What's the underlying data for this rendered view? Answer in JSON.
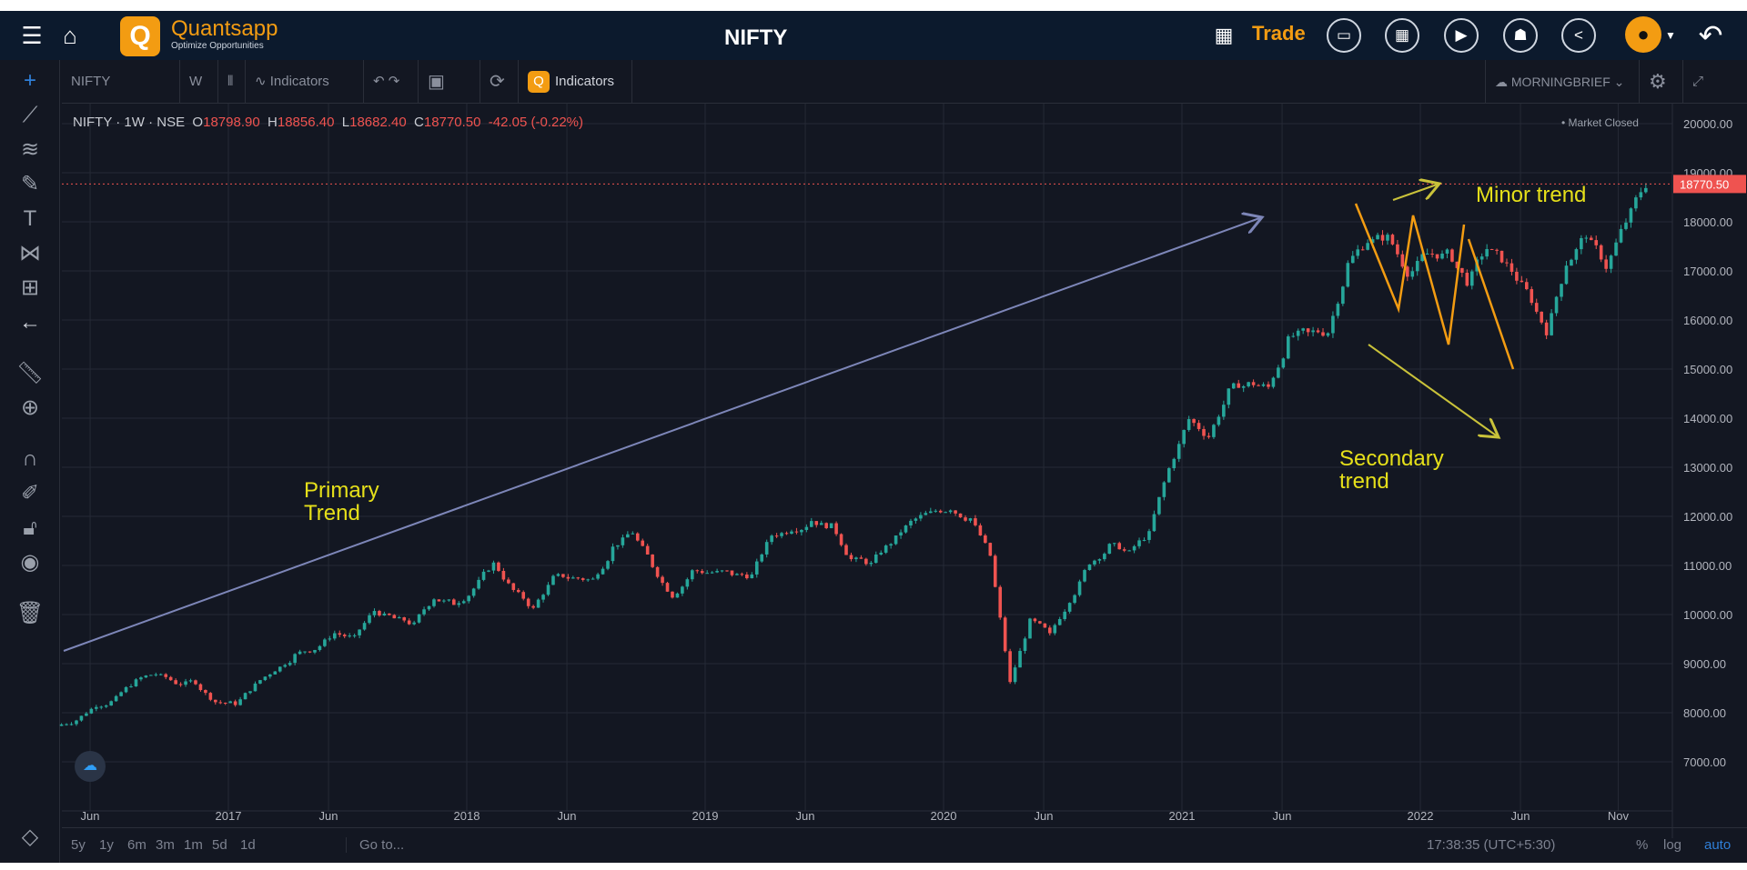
{
  "header": {
    "title": "NIFTY",
    "brand": "Quantsapp",
    "tagline": "Optimize Opportunities",
    "trade_label": "Trade"
  },
  "toolbar": {
    "symbol": "NIFTY",
    "interval": "W",
    "indicators_label": "Indicators",
    "q_indicators_label": "Indicators",
    "layout_name": "MORNINGBRIEF"
  },
  "legend": {
    "symbol": "NIFTY",
    "interval": "1W",
    "exchange": "NSE",
    "open": "18798.90",
    "high": "18856.40",
    "low": "18682.40",
    "close": "18770.50",
    "change": "-42.05 (-0.22%)",
    "status": "Market Closed"
  },
  "bottom": {
    "ranges": [
      "5y",
      "1y",
      "6m",
      "3m",
      "1m",
      "5d",
      "1d"
    ],
    "goto": "Go to...",
    "time": "17:38:35 (UTC+5:30)",
    "pct": "%",
    "log": "log",
    "auto": "auto"
  },
  "chart_data": {
    "type": "candlestick",
    "title": "NIFTY · 1W · NSE",
    "ylim": [
      6500,
      20500
    ],
    "y_ticks": [
      "20000.00",
      "19000.00",
      "18000.00",
      "17000.00",
      "16000.00",
      "15000.00",
      "14000.00",
      "13000.00",
      "12000.00",
      "11000.00",
      "10000.00",
      "9000.00",
      "8000.00",
      "7000.00"
    ],
    "x_ticks": [
      {
        "label": "Jun",
        "t": 2016.42
      },
      {
        "label": "2017",
        "t": 2017.0
      },
      {
        "label": "Jun",
        "t": 2017.42
      },
      {
        "label": "2018",
        "t": 2018.0
      },
      {
        "label": "Jun",
        "t": 2018.42
      },
      {
        "label": "2019",
        "t": 2019.0
      },
      {
        "label": "Jun",
        "t": 2019.42
      },
      {
        "label": "2020",
        "t": 2020.0
      },
      {
        "label": "Jun",
        "t": 2020.42
      },
      {
        "label": "2021",
        "t": 2021.0
      },
      {
        "label": "Jun",
        "t": 2021.42
      },
      {
        "label": "2022",
        "t": 2022.0
      },
      {
        "label": "Jun",
        "t": 2022.42
      },
      {
        "label": "Nov",
        "t": 2022.83
      }
    ],
    "start": 2016.3,
    "monthly_closes": [
      7850,
      8160,
      8290,
      8640,
      8790,
      8610,
      8630,
      8220,
      8190,
      8560,
      8880,
      9170,
      9300,
      9620,
      9520,
      10080,
      9920,
      9790,
      10340,
      10230,
      10530,
      11030,
      10490,
      10110,
      10740,
      10740,
      10710,
      11360,
      11680,
      11000,
      10390,
      10880,
      10860,
      10830,
      10790,
      11620,
      11750,
      11920,
      11790,
      11120,
      11020,
      11470,
      11880,
      12060,
      12170,
      11960,
      11200,
      8600,
      9860,
      9580,
      10300,
      11070,
      11390,
      11250,
      11640,
      12970,
      13980,
      13630,
      14530,
      14690,
      14630,
      15580,
      15720,
      15760,
      17130,
      17620,
      17670,
      16980,
      17350,
      17340,
      16790,
      17460,
      17100,
      16580,
      15780,
      17160,
      17760,
      17090,
      18010,
      18770
    ],
    "last_price": "18770.50",
    "annotations": {
      "primary": [
        "Primary",
        "Trend"
      ],
      "secondary": [
        "Secondary",
        "trend"
      ],
      "minor": "Minor trend"
    }
  }
}
